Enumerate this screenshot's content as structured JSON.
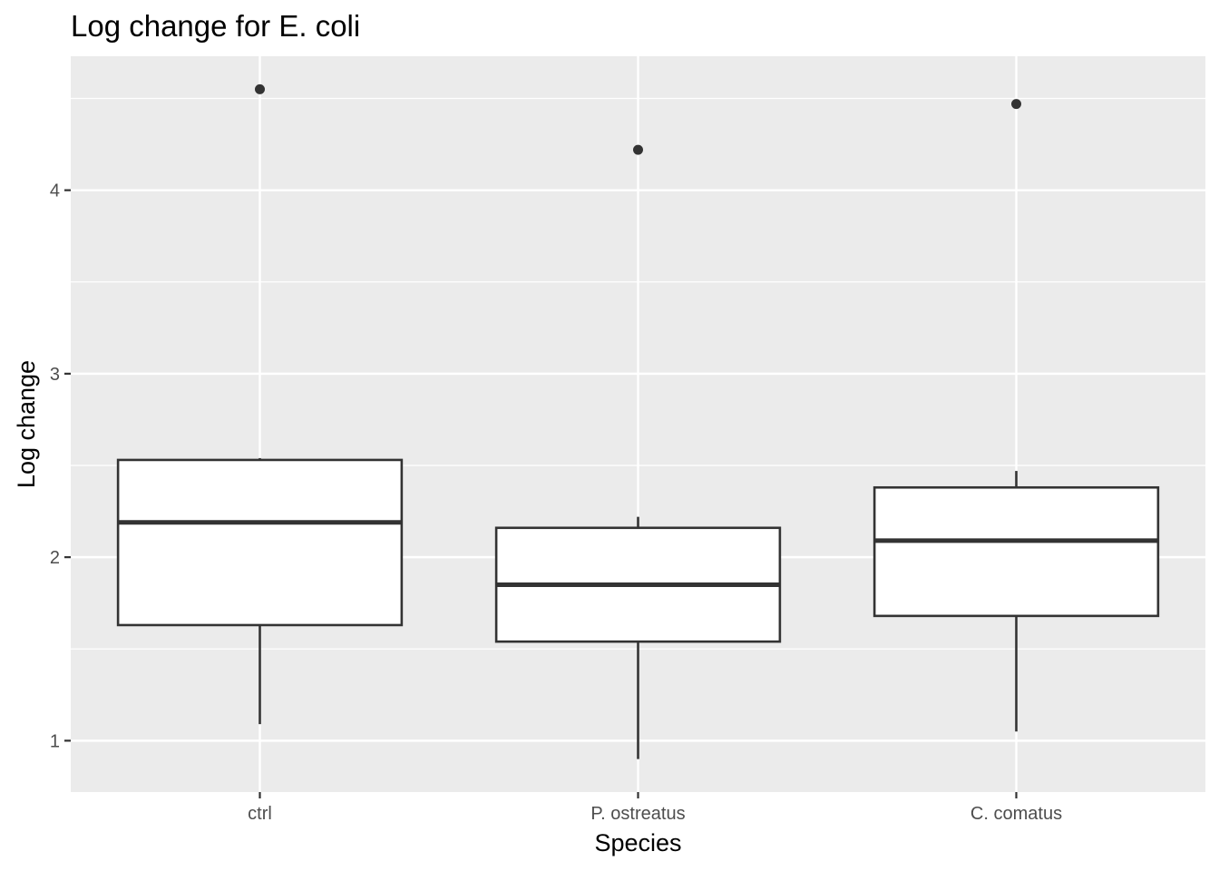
{
  "chart_data": {
    "type": "box",
    "title": "Log change for E. coli",
    "xlabel": "Species",
    "ylabel": "Log change",
    "categories": [
      "ctrl",
      "P. ostreatus",
      "C. comatus"
    ],
    "boxes": [
      {
        "category": "ctrl",
        "lower_whisker": 1.09,
        "q1": 1.63,
        "median": 2.19,
        "q3": 2.53,
        "upper_whisker": 2.54,
        "outliers": [
          4.55
        ]
      },
      {
        "category": "P. ostreatus",
        "lower_whisker": 0.9,
        "q1": 1.54,
        "median": 1.85,
        "q3": 2.16,
        "upper_whisker": 2.22,
        "outliers": [
          4.22
        ]
      },
      {
        "category": "C. comatus",
        "lower_whisker": 1.05,
        "q1": 1.68,
        "median": 2.09,
        "q3": 2.38,
        "upper_whisker": 2.47,
        "outliers": [
          4.47
        ]
      }
    ],
    "y_ticks": [
      1,
      2,
      3,
      4
    ],
    "ylim": [
      0.72,
      4.73
    ],
    "grid": true,
    "panel_color": "#ebebeb",
    "box_fill": "#ffffff",
    "line_color": "#333333"
  }
}
